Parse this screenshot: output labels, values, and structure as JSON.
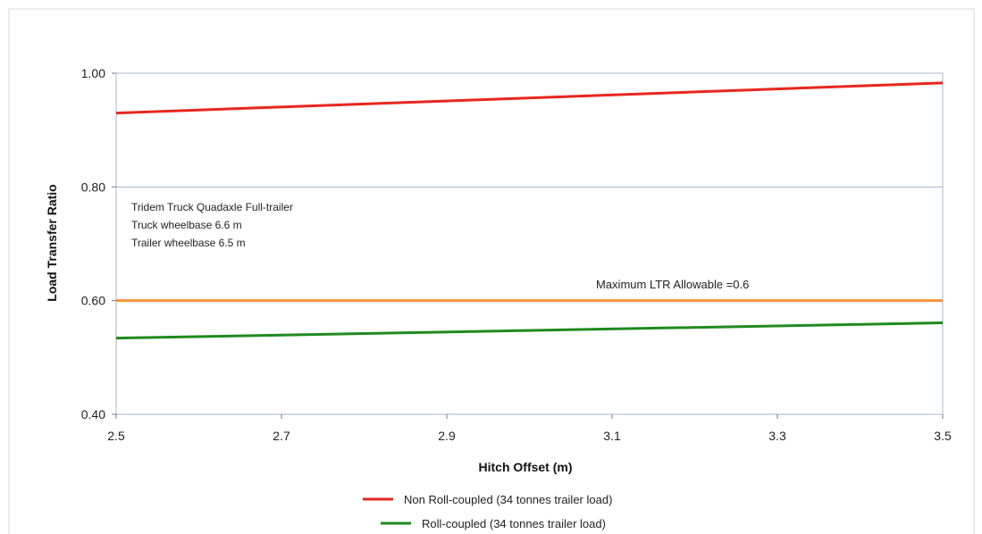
{
  "chart_data": {
    "type": "line",
    "xlabel": "Hitch Offset (m)",
    "ylabel": "Load Transfer Ratio",
    "xlim": [
      2.5,
      3.5
    ],
    "ylim": [
      0.4,
      1.0
    ],
    "x_ticks": [
      "2.5",
      "2.7",
      "2.9",
      "3.1",
      "3.3",
      "3.5"
    ],
    "y_ticks": [
      "0.40",
      "0.60",
      "0.80",
      "1.00"
    ],
    "y_tick_values": [
      0.4,
      0.6,
      0.8,
      1.0
    ],
    "x_tick_values": [
      2.5,
      2.7,
      2.9,
      3.1,
      3.3,
      3.5
    ],
    "grid": "horizontal",
    "legend_position": "bottom",
    "series": [
      {
        "name": "Non Roll-coupled (34 tonnes trailer load)",
        "color": "#e8261f",
        "x": [
          2.5,
          3.5
        ],
        "values": [
          0.93,
          0.983
        ]
      },
      {
        "name": "Roll-coupled (34 tonnes trailer load)",
        "color": "#1f8a1f",
        "x": [
          2.5,
          3.5
        ],
        "values": [
          0.534,
          0.561
        ]
      },
      {
        "name": "",
        "color": "#f7923a",
        "x": [
          2.5,
          3.5
        ],
        "values": [
          0.6,
          0.6
        ]
      }
    ],
    "annotations": [
      "Tridem Truck Quadaxle Full-trailer",
      "Truck wheelbase 6.6 m",
      "Trailer wheelbase 6.5 m"
    ],
    "threshold_label": "Maximum LTR Allowable  =0.6"
  }
}
